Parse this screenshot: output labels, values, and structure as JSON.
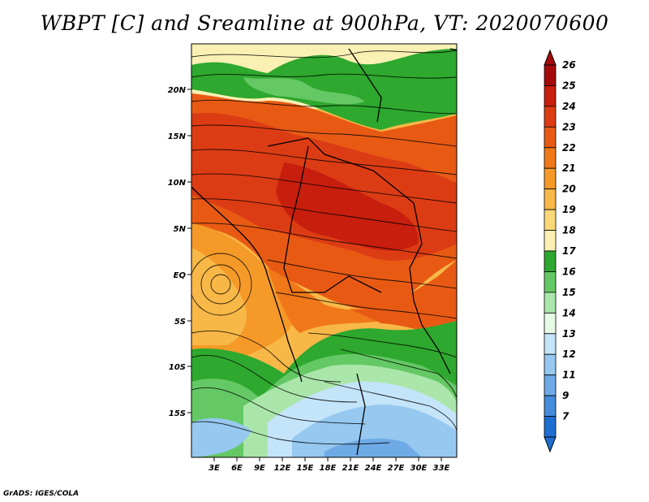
{
  "title": "WBPT [C] and Sreamline at 900hPa, VT: 2020070600",
  "footer": "GrADS: IGES/COLA",
  "map": {
    "lat_labels": [
      "20N",
      "15N",
      "10N",
      "5N",
      "EQ",
      "5S",
      "10S",
      "15S"
    ],
    "lon_labels": [
      "3E",
      "6E",
      "9E",
      "12E",
      "15E",
      "18E",
      "21E",
      "24E",
      "27E",
      "30E",
      "33E"
    ]
  },
  "colorbar": {
    "labels": [
      "26",
      "25",
      "24",
      "23",
      "22",
      "21",
      "20",
      "19",
      "18",
      "17",
      "16",
      "15",
      "14",
      "13",
      "12",
      "11",
      "9",
      "7"
    ],
    "colors": [
      "#a50a0a",
      "#c81e0e",
      "#dc3c14",
      "#e85a14",
      "#f07818",
      "#f59a28",
      "#f8b848",
      "#fad878",
      "#faf0b4",
      "#2ea82e",
      "#64c864",
      "#aae6aa",
      "#e6fae6",
      "#c4e4fa",
      "#96c8f0",
      "#6eaae6",
      "#468cdc",
      "#1e6ed2"
    ]
  }
}
